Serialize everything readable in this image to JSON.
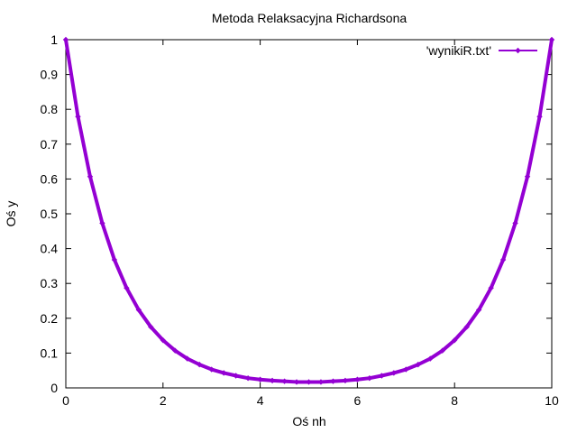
{
  "chart_data": {
    "type": "line",
    "title": "Metoda Relaksacyjna Richardsona",
    "xlabel": "Oś nh",
    "ylabel": "Oś y",
    "xlim": [
      0,
      10
    ],
    "ylim": [
      0,
      1
    ],
    "x_ticks": [
      "0",
      "2",
      "4",
      "6",
      "8",
      "10"
    ],
    "y_ticks": [
      "0",
      "0.1",
      "0.2",
      "0.3",
      "0.4",
      "0.5",
      "0.6",
      "0.7",
      "0.8",
      "0.9",
      "1"
    ],
    "grid": false,
    "legend_position": "top-right",
    "series": [
      {
        "name": "'wynikiR.txt'",
        "color": "#9400d3",
        "marker": "diamond",
        "x": [
          0,
          0.25,
          0.5,
          0.75,
          1,
          1.25,
          1.5,
          1.75,
          2,
          2.25,
          2.5,
          2.75,
          3,
          3.25,
          3.5,
          3.75,
          4,
          4.25,
          4.5,
          4.75,
          5,
          5.25,
          5.5,
          5.75,
          6,
          6.25,
          6.5,
          6.75,
          7,
          7.25,
          7.5,
          7.75,
          8,
          8.25,
          8.5,
          8.75,
          9,
          9.25,
          9.5,
          9.75,
          10
        ],
        "y": [
          1,
          0.779,
          0.607,
          0.473,
          0.368,
          0.287,
          0.224,
          0.175,
          0.137,
          0.107,
          0.084,
          0.067,
          0.053,
          0.043,
          0.035,
          0.028,
          0.024,
          0.021,
          0.019,
          0.017,
          0.017,
          0.017,
          0.019,
          0.021,
          0.024,
          0.028,
          0.035,
          0.043,
          0.053,
          0.067,
          0.084,
          0.107,
          0.137,
          0.175,
          0.224,
          0.287,
          0.368,
          0.473,
          0.607,
          0.779,
          1
        ]
      }
    ]
  }
}
